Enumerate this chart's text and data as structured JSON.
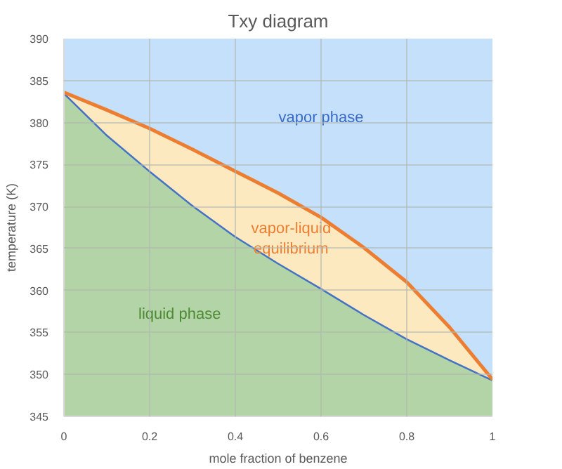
{
  "chart_data": {
    "type": "line",
    "title": "Txy diagram",
    "xlabel": "mole fraction of benzene",
    "ylabel": "temperature (K)",
    "x": [
      0,
      0.1,
      0.2,
      0.3,
      0.4,
      0.5,
      0.6,
      0.7,
      0.8,
      0.9,
      1
    ],
    "series": [
      {
        "type": "area",
        "color": "#b3d4a6",
        "values": [
          383.6,
          378.6,
          374.3,
          370.2,
          366.5,
          363.3,
          360.3,
          357.2,
          354.3,
          351.8,
          349.4
        ]
      },
      {
        "color": "#4472c4",
        "values": [
          383.6,
          378.6,
          374.3,
          370.2,
          366.5,
          363.3,
          360.3,
          357.2,
          354.3,
          351.8,
          349.4
        ]
      },
      {
        "type": "line",
        "color": "#ed7d31",
        "values": [
          383.6,
          381.5,
          379.3,
          376.8,
          374.2,
          371.6,
          368.7,
          365.1,
          361,
          355.6,
          349.4
        ],
        "lower": [
          383.6,
          378.6,
          374.3,
          370.2,
          366.5,
          363.3,
          360.3,
          357.2,
          354.3,
          351.8,
          349.4
        ],
        "upper": [
          383.6,
          381.5,
          379.3,
          376.8,
          374.2,
          371.6,
          368.7,
          365.1,
          361,
          355.6,
          349.4
        ]
      }
    ],
    "bands": [
      {
        "axis": "y",
        "from": 345,
        "to": 390,
        "color": "#c4e0fa"
      }
    ],
    "annotations": [
      "vapor phase",
      "vapor-liquid\nequilibrium",
      "liquid phase"
    ],
    "xlim": [
      0,
      1
    ],
    "ylim": [
      345,
      390
    ],
    "xticks": [
      0,
      0.2,
      0.4,
      0.6,
      0.8,
      1
    ],
    "yticks": [
      345,
      350,
      355,
      360,
      365,
      370,
      375,
      380,
      385,
      390
    ],
    "grid": true,
    "marker": "none",
    "line_style": "solid"
  }
}
